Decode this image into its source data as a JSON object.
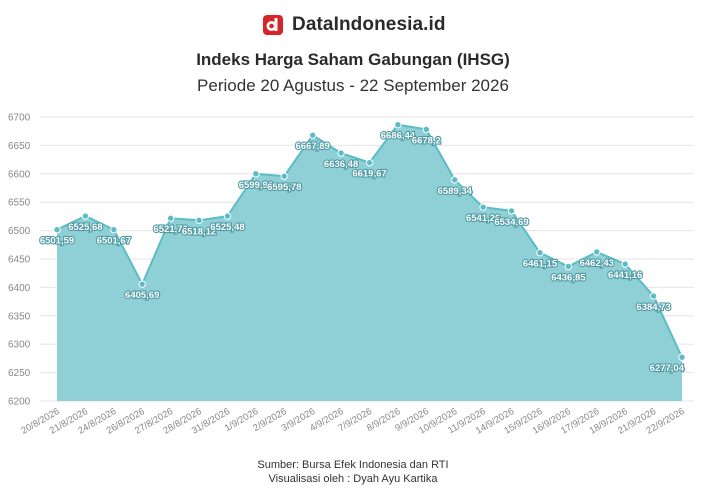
{
  "brand": {
    "name": "DataIndonesia.id",
    "accent": "#d7252c"
  },
  "header": {
    "title": "Indeks Harga Saham Gabungan (IHSG)",
    "subtitle": "Periode 20 Agustus - 22 September 2026"
  },
  "footer": {
    "source": "Sumber: Bursa Efek Indonesia dan RTI",
    "credit": "Visualisasi oleh : Dyah Ayu Kartika"
  },
  "colors": {
    "area_fill": "#8fd0d6",
    "line": "#5bbcc6",
    "grid": "#e6e6e6",
    "tick_text": "#888888"
  },
  "chart_data": {
    "type": "area",
    "title": "Indeks Harga Saham Gabungan (IHSG)",
    "subtitle": "Periode 20 Agustus - 22 September 2026",
    "xlabel": "",
    "ylabel": "",
    "ylim": [
      6200,
      6700
    ],
    "yticks": [
      6200,
      6250,
      6300,
      6350,
      6400,
      6450,
      6500,
      6550,
      6600,
      6650,
      6700
    ],
    "grid": true,
    "legend": "none",
    "categories": [
      "20/8/2026",
      "21/8/2026",
      "24/8/2026",
      "26/8/2026",
      "27/8/2026",
      "28/8/2026",
      "31/8/2026",
      "1/9/2026",
      "2/9/2026",
      "3/9/2026",
      "4/9/2026",
      "7/9/2026",
      "8/9/2026",
      "9/9/2026",
      "10/9/2026",
      "11/9/2026",
      "14/9/2026",
      "15/9/2026",
      "16/9/2026",
      "17/9/2026",
      "18/9/2026",
      "21/9/2026",
      "22/9/2026"
    ],
    "values": [
      6501.59,
      6525.68,
      6501.67,
      6405.69,
      6521.76,
      6518.12,
      6525.48,
      6599.96,
      6595.78,
      6667.89,
      6636.48,
      6619.67,
      6686.44,
      6678.2,
      6589.34,
      6541.26,
      6534.69,
      6461.15,
      6436.85,
      6462.43,
      6441.16,
      6384.73,
      6277.04
    ],
    "data_labels": [
      "6501,59",
      "6525,68",
      "6501,67",
      "6405,69",
      "6521,76",
      "6518,12",
      "6525,48",
      "6599,96",
      "6595,78",
      "6667,89",
      "6636,48",
      "6619,67",
      "6686,44",
      "6678,2",
      "6589,34",
      "6541,26",
      "6534,69",
      "6461,15",
      "6436,85",
      "6462,43",
      "6441,16",
      "6384,73",
      "6277,04"
    ]
  }
}
